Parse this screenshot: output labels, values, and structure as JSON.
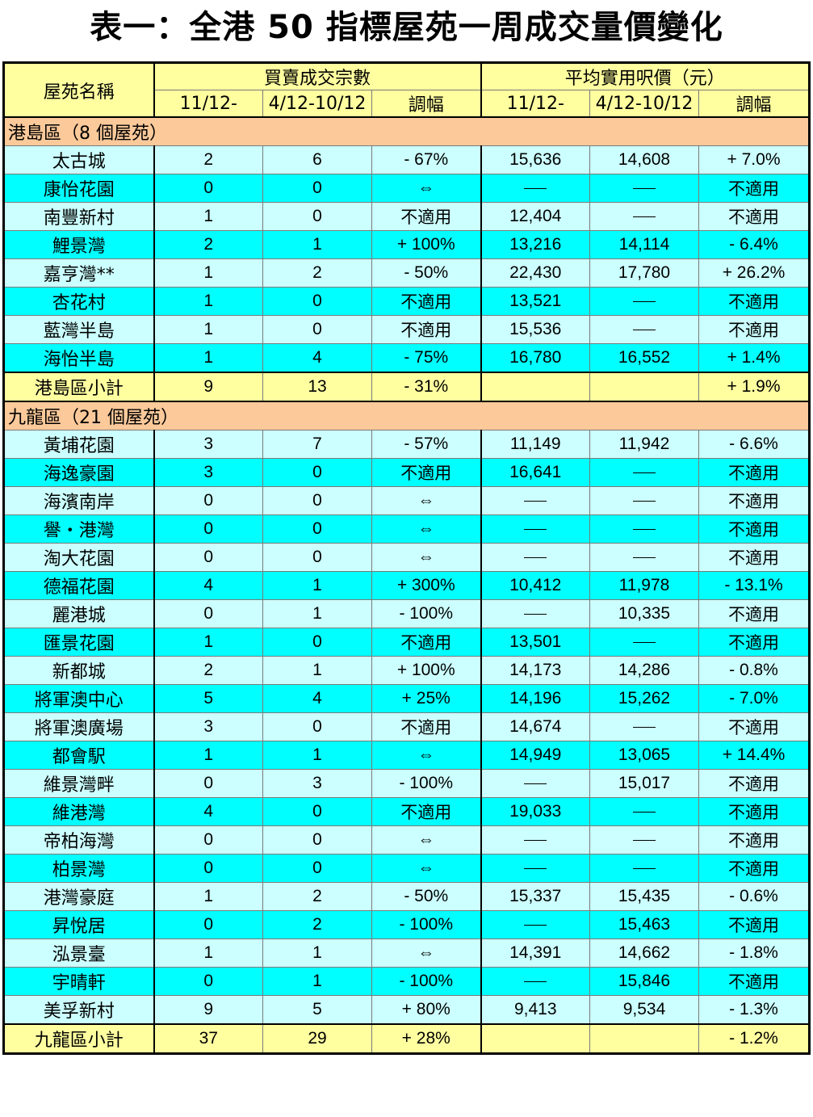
{
  "title": "表一：全港 50 指標屋苑一周成交量價變化",
  "headers": {
    "estate": "屋苑名稱",
    "transactions": "買賣成交宗數",
    "price": "平均實用呎價（元）",
    "week_current": "11/12-",
    "week_prev": "4/12-10/12",
    "change": "調幅"
  },
  "sections": [
    {
      "label": "港島區（8 個屋苑）",
      "rows": [
        [
          "太古城",
          "2",
          "6",
          "- 67%",
          "15,636",
          "14,608",
          "+ 7.0%"
        ],
        [
          "康怡花園",
          "0",
          "0",
          "⇔",
          "—",
          "—",
          "不適用"
        ],
        [
          "南豐新村",
          "1",
          "0",
          "不適用",
          "12,404",
          "—",
          "不適用"
        ],
        [
          "鯉景灣",
          "2",
          "1",
          "+ 100%",
          "13,216",
          "14,114",
          "- 6.4%"
        ],
        [
          "嘉亨灣**",
          "1",
          "2",
          "- 50%",
          "22,430",
          "17,780",
          "+ 26.2%"
        ],
        [
          "杏花村",
          "1",
          "0",
          "不適用",
          "13,521",
          "—",
          "不適用"
        ],
        [
          "藍灣半島",
          "1",
          "0",
          "不適用",
          "15,536",
          "—",
          "不適用"
        ],
        [
          "海怡半島",
          "1",
          "4",
          "- 75%",
          "16,780",
          "16,552",
          "+ 1.4%"
        ]
      ],
      "subtotal": [
        "港島區小計",
        "9",
        "13",
        "- 31%",
        "",
        "",
        "+ 1.9%"
      ]
    },
    {
      "label": "九龍區（21 個屋苑）",
      "rows": [
        [
          "黃埔花園",
          "3",
          "7",
          "- 57%",
          "11,149",
          "11,942",
          "- 6.6%"
        ],
        [
          "海逸豪園",
          "3",
          "0",
          "不適用",
          "16,641",
          "—",
          "不適用"
        ],
        [
          "海濱南岸",
          "0",
          "0",
          "⇔",
          "—",
          "—",
          "不適用"
        ],
        [
          "譽・港灣",
          "0",
          "0",
          "⇔",
          "—",
          "—",
          "不適用"
        ],
        [
          "淘大花園",
          "0",
          "0",
          "⇔",
          "—",
          "—",
          "不適用"
        ],
        [
          "德福花園",
          "4",
          "1",
          "+ 300%",
          "10,412",
          "11,978",
          "- 13.1%"
        ],
        [
          "麗港城",
          "0",
          "1",
          "- 100%",
          "—",
          "10,335",
          "不適用"
        ],
        [
          "匯景花園",
          "1",
          "0",
          "不適用",
          "13,501",
          "—",
          "不適用"
        ],
        [
          "新都城",
          "2",
          "1",
          "+ 100%",
          "14,173",
          "14,286",
          "- 0.8%"
        ],
        [
          "將軍澳中心",
          "5",
          "4",
          "+ 25%",
          "14,196",
          "15,262",
          "- 7.0%"
        ],
        [
          "將軍澳廣場",
          "3",
          "0",
          "不適用",
          "14,674",
          "—",
          "不適用"
        ],
        [
          "都會駅",
          "1",
          "1",
          "⇔",
          "14,949",
          "13,065",
          "+ 14.4%"
        ],
        [
          "維景灣畔",
          "0",
          "3",
          "- 100%",
          "—",
          "15,017",
          "不適用"
        ],
        [
          "維港灣",
          "4",
          "0",
          "不適用",
          "19,033",
          "—",
          "不適用"
        ],
        [
          "帝柏海灣",
          "0",
          "0",
          "⇔",
          "—",
          "—",
          "不適用"
        ],
        [
          "柏景灣",
          "0",
          "0",
          "⇔",
          "—",
          "—",
          "不適用"
        ],
        [
          "港灣豪庭",
          "1",
          "2",
          "- 50%",
          "15,337",
          "15,435",
          "- 0.6%"
        ],
        [
          "昇悅居",
          "0",
          "2",
          "- 100%",
          "—",
          "15,463",
          "不適用"
        ],
        [
          "泓景臺",
          "1",
          "1",
          "⇔",
          "14,391",
          "14,662",
          "- 1.8%"
        ],
        [
          "宇晴軒",
          "0",
          "1",
          "- 100%",
          "—",
          "15,846",
          "不適用"
        ],
        [
          "美孚新村",
          "9",
          "5",
          "+ 80%",
          "9,413",
          "9,534",
          "- 1.3%"
        ]
      ],
      "subtotal": [
        "九龍區小計",
        "37",
        "29",
        "+ 28%",
        "",
        "",
        "- 1.2%"
      ]
    }
  ]
}
